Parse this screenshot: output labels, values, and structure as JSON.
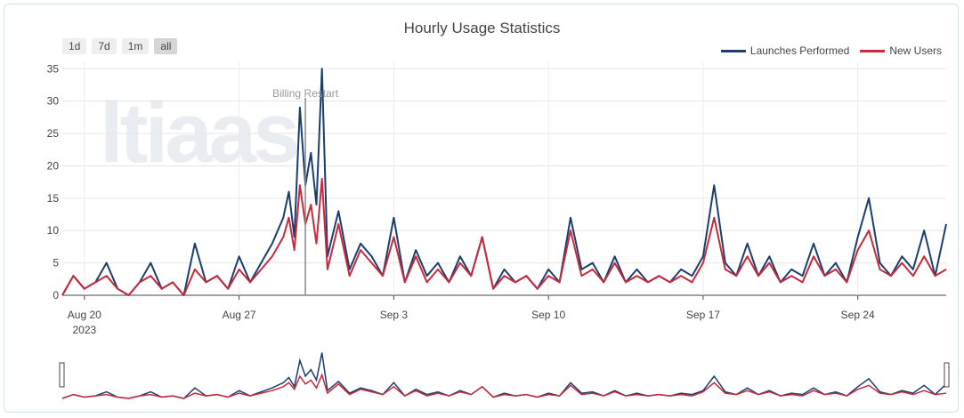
{
  "chart_data": {
    "type": "line",
    "title": "Hourly Usage Statistics",
    "xlabel": "",
    "ylabel": "",
    "ylim": [
      0,
      36
    ],
    "yticks": [
      0,
      5,
      10,
      15,
      20,
      25,
      30,
      35
    ],
    "x_start": "2023-08-19T00:00",
    "x_end": "2023-09-28T00:00",
    "x_ticks": [
      {
        "date": "2023-08-20",
        "label": "Aug 20",
        "sublabel": "2023"
      },
      {
        "date": "2023-08-27",
        "label": "Aug 27",
        "sublabel": ""
      },
      {
        "date": "2023-09-03",
        "label": "Sep 3",
        "sublabel": ""
      },
      {
        "date": "2023-09-10",
        "label": "Sep 10",
        "sublabel": ""
      },
      {
        "date": "2023-09-17",
        "label": "Sep 17",
        "sublabel": ""
      },
      {
        "date": "2023-09-24",
        "label": "Sep 24",
        "sublabel": ""
      }
    ],
    "grid": true,
    "legend_position": "top-right",
    "annotations": [
      {
        "text": "Billing Restart",
        "x": "2023-08-30T00:00",
        "y": 30.5
      }
    ],
    "series": [
      {
        "name": "Launches Performed",
        "color": "#1b3e6e",
        "x": [
          "2023-08-19T00:00",
          "2023-08-19T12:00",
          "2023-08-20T00:00",
          "2023-08-20T12:00",
          "2023-08-21T00:00",
          "2023-08-21T12:00",
          "2023-08-22T00:00",
          "2023-08-22T12:00",
          "2023-08-23T00:00",
          "2023-08-23T12:00",
          "2023-08-24T00:00",
          "2023-08-24T12:00",
          "2023-08-25T00:00",
          "2023-08-25T12:00",
          "2023-08-26T00:00",
          "2023-08-26T12:00",
          "2023-08-27T00:00",
          "2023-08-27T12:00",
          "2023-08-28T00:00",
          "2023-08-28T12:00",
          "2023-08-29T00:00",
          "2023-08-29T06:00",
          "2023-08-29T12:00",
          "2023-08-29T18:00",
          "2023-08-30T00:00",
          "2023-08-30T06:00",
          "2023-08-30T12:00",
          "2023-08-30T18:00",
          "2023-08-31T00:00",
          "2023-08-31T12:00",
          "2023-09-01T00:00",
          "2023-09-01T12:00",
          "2023-09-02T00:00",
          "2023-09-02T12:00",
          "2023-09-03T00:00",
          "2023-09-03T12:00",
          "2023-09-04T00:00",
          "2023-09-04T12:00",
          "2023-09-05T00:00",
          "2023-09-05T12:00",
          "2023-09-06T00:00",
          "2023-09-06T12:00",
          "2023-09-07T00:00",
          "2023-09-07T12:00",
          "2023-09-08T00:00",
          "2023-09-08T12:00",
          "2023-09-09T00:00",
          "2023-09-09T12:00",
          "2023-09-10T00:00",
          "2023-09-10T12:00",
          "2023-09-11T00:00",
          "2023-09-11T12:00",
          "2023-09-12T00:00",
          "2023-09-12T12:00",
          "2023-09-13T00:00",
          "2023-09-13T12:00",
          "2023-09-14T00:00",
          "2023-09-14T12:00",
          "2023-09-15T00:00",
          "2023-09-15T12:00",
          "2023-09-16T00:00",
          "2023-09-16T12:00",
          "2023-09-17T00:00",
          "2023-09-17T12:00",
          "2023-09-18T00:00",
          "2023-09-18T12:00",
          "2023-09-19T00:00",
          "2023-09-19T12:00",
          "2023-09-20T00:00",
          "2023-09-20T12:00",
          "2023-09-21T00:00",
          "2023-09-21T12:00",
          "2023-09-22T00:00",
          "2023-09-22T12:00",
          "2023-09-23T00:00",
          "2023-09-23T12:00",
          "2023-09-24T00:00",
          "2023-09-24T12:00",
          "2023-09-25T00:00",
          "2023-09-25T12:00",
          "2023-09-26T00:00",
          "2023-09-26T12:00",
          "2023-09-27T00:00",
          "2023-09-27T12:00",
          "2023-09-28T00:00"
        ],
        "values": [
          0,
          3,
          1,
          2,
          5,
          1,
          0,
          2,
          5,
          1,
          2,
          0,
          8,
          2,
          3,
          1,
          6,
          2,
          5,
          8,
          12,
          16,
          9,
          29,
          17,
          22,
          14,
          35,
          6,
          13,
          4,
          8,
          6,
          3,
          12,
          2,
          7,
          3,
          5,
          2,
          6,
          3,
          9,
          1,
          4,
          2,
          3,
          1,
          4,
          2,
          12,
          4,
          5,
          2,
          6,
          2,
          4,
          2,
          3,
          2,
          4,
          3,
          6,
          17,
          5,
          3,
          8,
          3,
          6,
          2,
          4,
          3,
          8,
          3,
          5,
          2,
          9,
          15,
          5,
          3,
          6,
          4,
          10,
          3,
          11
        ]
      },
      {
        "name": "New Users",
        "color": "#c8293b",
        "x": [
          "2023-08-19T00:00",
          "2023-08-19T12:00",
          "2023-08-20T00:00",
          "2023-08-20T12:00",
          "2023-08-21T00:00",
          "2023-08-21T12:00",
          "2023-08-22T00:00",
          "2023-08-22T12:00",
          "2023-08-23T00:00",
          "2023-08-23T12:00",
          "2023-08-24T00:00",
          "2023-08-24T12:00",
          "2023-08-25T00:00",
          "2023-08-25T12:00",
          "2023-08-26T00:00",
          "2023-08-26T12:00",
          "2023-08-27T00:00",
          "2023-08-27T12:00",
          "2023-08-28T00:00",
          "2023-08-28T12:00",
          "2023-08-29T00:00",
          "2023-08-29T06:00",
          "2023-08-29T12:00",
          "2023-08-29T18:00",
          "2023-08-30T00:00",
          "2023-08-30T06:00",
          "2023-08-30T12:00",
          "2023-08-30T18:00",
          "2023-08-31T00:00",
          "2023-08-31T12:00",
          "2023-09-01T00:00",
          "2023-09-01T12:00",
          "2023-09-02T00:00",
          "2023-09-02T12:00",
          "2023-09-03T00:00",
          "2023-09-03T12:00",
          "2023-09-04T00:00",
          "2023-09-04T12:00",
          "2023-09-05T00:00",
          "2023-09-05T12:00",
          "2023-09-06T00:00",
          "2023-09-06T12:00",
          "2023-09-07T00:00",
          "2023-09-07T12:00",
          "2023-09-08T00:00",
          "2023-09-08T12:00",
          "2023-09-09T00:00",
          "2023-09-09T12:00",
          "2023-09-10T00:00",
          "2023-09-10T12:00",
          "2023-09-11T00:00",
          "2023-09-11T12:00",
          "2023-09-12T00:00",
          "2023-09-12T12:00",
          "2023-09-13T00:00",
          "2023-09-13T12:00",
          "2023-09-14T00:00",
          "2023-09-14T12:00",
          "2023-09-15T00:00",
          "2023-09-15T12:00",
          "2023-09-16T00:00",
          "2023-09-16T12:00",
          "2023-09-17T00:00",
          "2023-09-17T12:00",
          "2023-09-18T00:00",
          "2023-09-18T12:00",
          "2023-09-19T00:00",
          "2023-09-19T12:00",
          "2023-09-20T00:00",
          "2023-09-20T12:00",
          "2023-09-21T00:00",
          "2023-09-21T12:00",
          "2023-09-22T00:00",
          "2023-09-22T12:00",
          "2023-09-23T00:00",
          "2023-09-23T12:00",
          "2023-09-24T00:00",
          "2023-09-24T12:00",
          "2023-09-25T00:00",
          "2023-09-25T12:00",
          "2023-09-26T00:00",
          "2023-09-26T12:00",
          "2023-09-27T00:00",
          "2023-09-27T12:00",
          "2023-09-28T00:00"
        ],
        "values": [
          0,
          3,
          1,
          2,
          3,
          1,
          0,
          2,
          3,
          1,
          2,
          0,
          4,
          2,
          3,
          1,
          4,
          2,
          4,
          6,
          9,
          12,
          7,
          17,
          11,
          14,
          8,
          18,
          4,
          11,
          3,
          7,
          5,
          3,
          9,
          2,
          6,
          2,
          4,
          2,
          5,
          3,
          9,
          1,
          3,
          2,
          3,
          1,
          3,
          2,
          10,
          3,
          4,
          2,
          5,
          2,
          3,
          2,
          3,
          2,
          3,
          2,
          5,
          12,
          4,
          3,
          6,
          3,
          5,
          2,
          3,
          2,
          6,
          3,
          4,
          2,
          7,
          10,
          4,
          3,
          5,
          3,
          6,
          3,
          4
        ]
      }
    ]
  },
  "ui": {
    "range_buttons": [
      {
        "label": "1d"
      },
      {
        "label": "7d"
      },
      {
        "label": "1m"
      },
      {
        "label": "all",
        "active": true
      }
    ],
    "watermark": "ltiaas"
  }
}
